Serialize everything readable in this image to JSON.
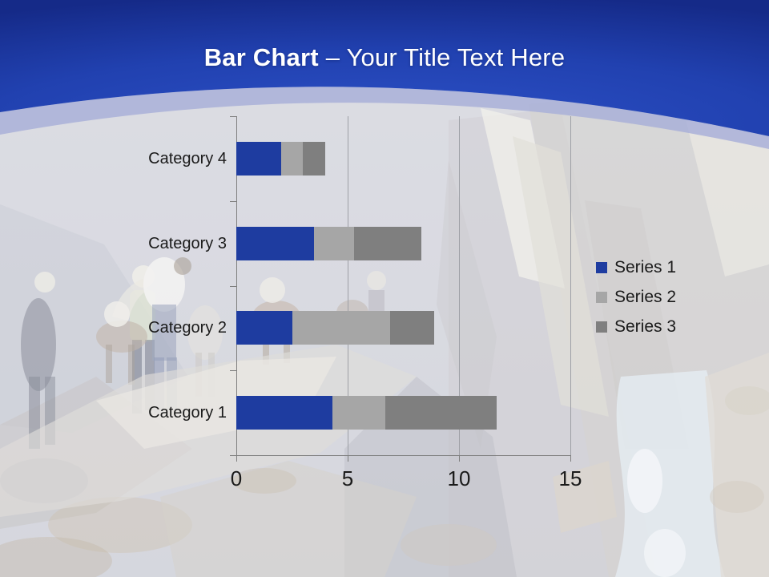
{
  "slide": {
    "title": {
      "bold": "Bar Chart",
      "rest": "– Your Title Text Here"
    }
  },
  "chart_data": {
    "type": "bar",
    "orientation": "horizontal",
    "stacked": true,
    "categories": [
      "Category 1",
      "Category 2",
      "Category 3",
      "Category 4"
    ],
    "series": [
      {
        "name": "Series 1",
        "color": "#1E3CA0",
        "values": [
          4.3,
          2.5,
          3.5,
          2
        ]
      },
      {
        "name": "Series 2",
        "color": "#A6A6A6",
        "values": [
          2.4,
          4.4,
          1.8,
          1
        ]
      },
      {
        "name": "Series 3",
        "color": "#7F7F7F",
        "values": [
          5,
          2,
          3,
          1
        ]
      }
    ],
    "x_axis": {
      "min": 0,
      "max": 15,
      "ticks": [
        0,
        5,
        10,
        15
      ],
      "tick_labels": [
        "0",
        "5",
        "10",
        "15"
      ]
    },
    "category_display_order_top_to_bottom": [
      "Category 4",
      "Category 3",
      "Category 2",
      "Category 1"
    ],
    "legend": {
      "position": "right",
      "entries": [
        "Series 1",
        "Series 2",
        "Series 3"
      ]
    },
    "gridlines": true
  },
  "colors": {
    "header_blue_dark": "#152A88",
    "header_blue_mid": "#2141B0",
    "header_blue_light": "#2C50C6",
    "header_band": "#A9B0D8",
    "series1": "#1E3CA0",
    "series2": "#A6A6A6",
    "series3": "#7F7F7F",
    "axis_line": "#7F7F7F",
    "gridline": "#9EA0A6",
    "label_text": "#1A1A1A",
    "title_text": "#FFFFFF"
  }
}
